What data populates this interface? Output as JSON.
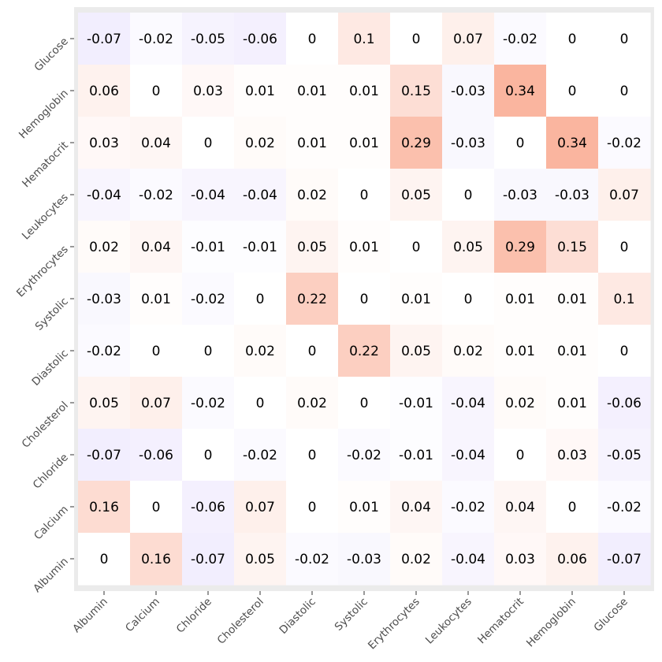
{
  "chart_data": {
    "type": "heatmap",
    "x_categories": [
      "Albumin",
      "Calcium",
      "Chloride",
      "Cholesterol",
      "Diastolic",
      "Systolic",
      "Erythrocytes",
      "Leukocytes",
      "Hematocrit",
      "Hemoglobin",
      "Glucose"
    ],
    "y_categories": [
      "Glucose",
      "Hemoglobin",
      "Hematocrit",
      "Leukocytes",
      "Erythrocytes",
      "Systolic",
      "Diastolic",
      "Cholesterol",
      "Chloride",
      "Calcium",
      "Albumin"
    ],
    "values": [
      [
        -0.07,
        -0.02,
        -0.05,
        -0.06,
        0,
        0.1,
        0,
        0.07,
        -0.02,
        0,
        0
      ],
      [
        0.06,
        0,
        0.03,
        0.01,
        0.01,
        0.01,
        0.15,
        -0.03,
        0.34,
        0,
        0
      ],
      [
        0.03,
        0.04,
        0,
        0.02,
        0.01,
        0.01,
        0.29,
        -0.03,
        0,
        0.34,
        -0.02
      ],
      [
        -0.04,
        -0.02,
        -0.04,
        -0.04,
        0.02,
        0,
        0.05,
        0,
        -0.03,
        -0.03,
        0.07
      ],
      [
        0.02,
        0.04,
        -0.01,
        -0.01,
        0.05,
        0.01,
        0,
        0.05,
        0.29,
        0.15,
        0
      ],
      [
        -0.03,
        0.01,
        -0.02,
        0,
        0.22,
        0,
        0.01,
        0,
        0.01,
        0.01,
        0.1
      ],
      [
        -0.02,
        0,
        0,
        0.02,
        0,
        0.22,
        0.05,
        0.02,
        0.01,
        0.01,
        0
      ],
      [
        0.05,
        0.07,
        -0.02,
        0,
        0.02,
        0,
        -0.01,
        -0.04,
        0.02,
        0.01,
        -0.06
      ],
      [
        -0.07,
        -0.06,
        0,
        -0.02,
        0,
        -0.02,
        -0.01,
        -0.04,
        0,
        0.03,
        -0.05
      ],
      [
        0.16,
        0,
        -0.06,
        0.07,
        0,
        0.01,
        0.04,
        -0.02,
        0.04,
        0,
        -0.02
      ],
      [
        0,
        0.16,
        -0.07,
        0.05,
        -0.02,
        -0.03,
        0.02,
        -0.04,
        0.03,
        0.06,
        -0.07
      ]
    ],
    "title": "",
    "xlabel": "",
    "ylabel": "",
    "color_scale": {
      "negative": "#6a3df0",
      "zero": "#ffffff",
      "positive": "#f4511e",
      "value_limit": 0.8
    },
    "grid": true,
    "legend": "none"
  }
}
